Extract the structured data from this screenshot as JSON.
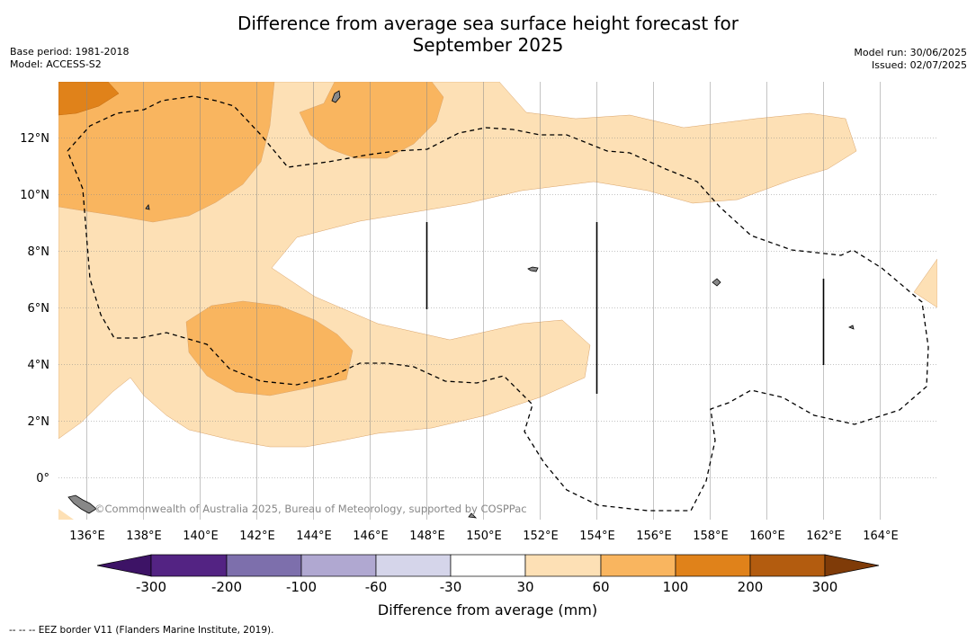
{
  "title_line1": "Difference from average sea surface height forecast for",
  "title_line2": "September 2025",
  "meta_left": {
    "base_period": "Base period: 1981-2018",
    "model": "Model: ACCESS-S2"
  },
  "meta_right": {
    "model_run": "Model run: 30/06/2025",
    "issued": "Issued: 02/07/2025"
  },
  "map": {
    "lon_labels": [
      "136°E",
      "138°E",
      "140°E",
      "142°E",
      "144°E",
      "146°E",
      "148°E",
      "150°E",
      "152°E",
      "154°E",
      "156°E",
      "158°E",
      "160°E",
      "162°E",
      "164°E"
    ],
    "lat_labels": [
      "12°N",
      "10°N",
      "8°N",
      "6°N",
      "4°N",
      "2°N",
      "0°"
    ],
    "watermark": "©Commonwealth of Australia 2025, Bureau of Meteorology, supported by COSPPac",
    "colors": {
      "light_orange": "#fde0b5",
      "mid_orange": "#f9b55f",
      "dark_orange": "#e0821a"
    }
  },
  "colorbar": {
    "title": "Difference from average (mm)",
    "ticks": [
      "-300",
      "-200",
      "-100",
      "-60",
      "-30",
      "30",
      "60",
      "100",
      "200",
      "300"
    ],
    "colors": [
      "#3d1366",
      "#532383",
      "#7d6fac",
      "#b0a8d1",
      "#d5d5ea",
      "#ffffff",
      "#fde0b5",
      "#f9b55f",
      "#e0821a",
      "#b35c0f",
      "#7f3b08"
    ]
  },
  "footer": "-- -- -- EEZ border V11 (Flanders Marine Institute, 2019)."
}
